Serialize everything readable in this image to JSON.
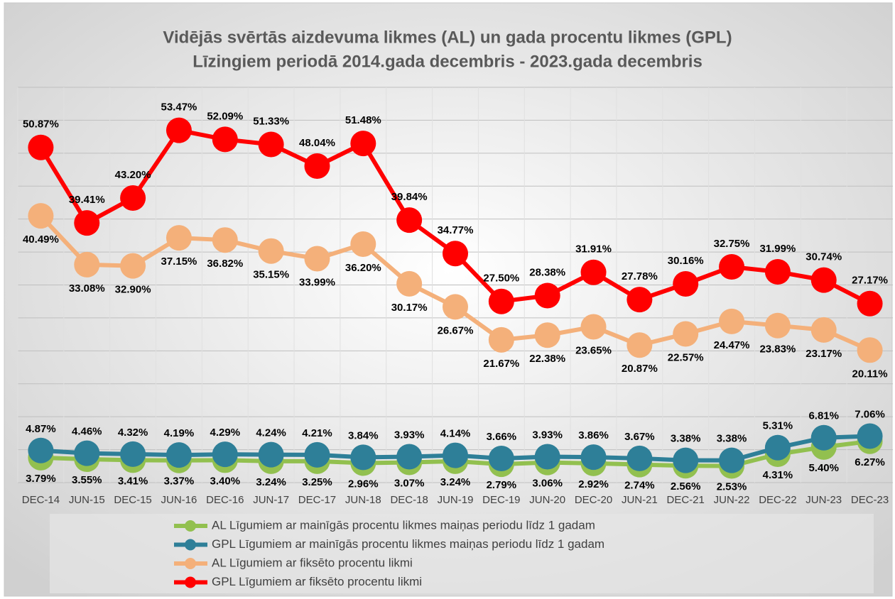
{
  "chart_data": {
    "type": "line",
    "title": "Vidējās svērtās aizdevuma likmes (AL) un gada procentu likmes (GPL)",
    "subtitle": "Līzingiem periodā 2014.gada decembris - 2023.gada decembris",
    "categories": [
      "DEC-14",
      "JUN-15",
      "DEC-15",
      "JUN-16",
      "DEC-16",
      "JUN-17",
      "DEC-17",
      "JUN-18",
      "DEC-18",
      "JUN-19",
      "DEC-19",
      "JUN-20",
      "DEC-20",
      "JUN-21",
      "DEC-21",
      "JUN-22",
      "DEC-22",
      "JUN-23",
      "DEC-23"
    ],
    "ylim": [
      0,
      60
    ],
    "yticks": [
      0,
      5,
      10,
      15,
      20,
      25,
      30,
      35,
      40,
      45,
      50,
      55,
      60
    ],
    "grid": true,
    "series": [
      {
        "name": "AL Līgumiem ar mainīgās procentu likmes maiņas periodu līdz 1 gadam",
        "color": "#92c04f",
        "values": [
          3.79,
          3.55,
          3.41,
          3.37,
          3.4,
          3.24,
          3.25,
          2.96,
          3.07,
          3.24,
          2.79,
          3.06,
          2.92,
          2.74,
          2.56,
          2.53,
          4.31,
          5.4,
          6.27
        ],
        "value_labels": [
          "3.79%",
          "3.55%",
          "3.41%",
          "3.37%",
          "3.40%",
          "3.24%",
          "3.25%",
          "2.96%",
          "3.07%",
          "3.24%",
          "2.79%",
          "3.06%",
          "2.92%",
          "2.74%",
          "2.56%",
          "2.53%",
          "4.31%",
          "5.40%",
          "6.27%"
        ]
      },
      {
        "name": "GPL Līgumiem ar mainīgās procentu likmes maiņas periodu līdz 1 gadam",
        "color": "#2e7f98",
        "values": [
          4.87,
          4.46,
          4.32,
          4.19,
          4.29,
          4.24,
          4.21,
          3.84,
          3.93,
          4.14,
          3.66,
          3.93,
          3.86,
          3.67,
          3.38,
          3.38,
          5.31,
          6.81,
          7.06
        ],
        "value_labels": [
          "4.87%",
          "4.46%",
          "4.32%",
          "4.19%",
          "4.29%",
          "4.24%",
          "4.21%",
          "3.84%",
          "3.93%",
          "4.14%",
          "3.66%",
          "3.93%",
          "3.86%",
          "3.67%",
          "3.38%",
          "3.38%",
          "5.31%",
          "6.81%",
          "7.06%"
        ]
      },
      {
        "name": "AL Līgumiem ar fiksēto procentu likmi",
        "color": "#f4b07a",
        "values": [
          40.49,
          33.08,
          32.9,
          37.15,
          36.82,
          35.15,
          33.99,
          36.2,
          30.17,
          26.67,
          21.67,
          22.38,
          23.65,
          20.87,
          22.57,
          24.47,
          23.83,
          23.17,
          20.11
        ],
        "value_labels": [
          "40.49%",
          "33.08%",
          "32.90%",
          "37.15%",
          "36.82%",
          "35.15%",
          "33.99%",
          "36.20%",
          "30.17%",
          "26.67%",
          "21.67%",
          "22.38%",
          "23.65%",
          "20.87%",
          "22.57%",
          "24.47%",
          "23.83%",
          "23.17%",
          "20.11%"
        ]
      },
      {
        "name": "GPL Līgumiem ar fiksēto procentu likmi",
        "color": "#ff0000",
        "values": [
          50.87,
          39.41,
          43.2,
          53.47,
          52.09,
          51.33,
          48.04,
          51.48,
          39.84,
          34.77,
          27.5,
          28.38,
          31.91,
          27.78,
          30.16,
          32.75,
          31.99,
          30.74,
          27.17
        ],
        "value_labels": [
          "50.87%",
          "39.41%",
          "43.20%",
          "53.47%",
          "52.09%",
          "51.33%",
          "48.04%",
          "51.48%",
          "39.84%",
          "34.77%",
          "27.50%",
          "28.38%",
          "31.91%",
          "27.78%",
          "30.16%",
          "32.75%",
          "31.99%",
          "30.74%",
          "27.17%"
        ]
      }
    ]
  }
}
